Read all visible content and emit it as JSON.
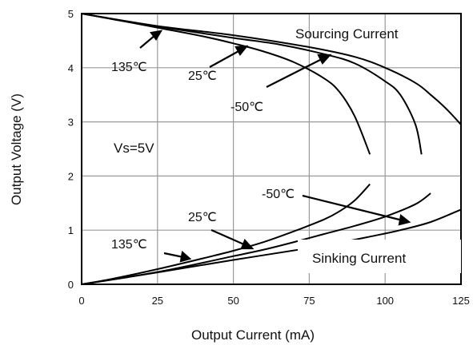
{
  "chart_data": {
    "type": "line",
    "xlabel": "Output Current (mA)",
    "ylabel": "Output Voltage (V)",
    "xlim": [
      0,
      125
    ],
    "ylim": [
      0,
      5
    ],
    "x_ticks": [
      0,
      25,
      50,
      75,
      100,
      125
    ],
    "y_ticks": [
      0,
      1,
      2,
      3,
      4,
      5
    ],
    "grid": true,
    "groups": {
      "sourcing": "Sourcing Current",
      "sinking": "Sinking Current"
    },
    "annotation": "Vs=5V",
    "series": [
      {
        "name": "135℃",
        "group": "sourcing",
        "x": [
          0,
          10,
          25,
          40,
          50,
          60,
          70,
          80,
          85,
          90,
          95
        ],
        "y": [
          5.0,
          4.9,
          4.74,
          4.58,
          4.45,
          4.3,
          4.1,
          3.8,
          3.55,
          3.1,
          2.4
        ]
      },
      {
        "name": "25℃",
        "group": "sourcing",
        "x": [
          0,
          15,
          30,
          50,
          65,
          80,
          90,
          100,
          105,
          110,
          112
        ],
        "y": [
          5.0,
          4.85,
          4.72,
          4.55,
          4.43,
          4.25,
          4.08,
          3.75,
          3.5,
          2.95,
          2.4
        ]
      },
      {
        "name": "-50℃",
        "group": "sourcing",
        "x": [
          0,
          25,
          50,
          75,
          90,
          100,
          110,
          115,
          120,
          125
        ],
        "y": [
          5.0,
          4.77,
          4.6,
          4.38,
          4.2,
          4.0,
          3.72,
          3.5,
          3.25,
          2.95
        ]
      },
      {
        "name": "135℃",
        "group": "sinking",
        "x": [
          0,
          10,
          25,
          40,
          50,
          60,
          70,
          80,
          85,
          90,
          95
        ],
        "y": [
          0,
          0.1,
          0.28,
          0.48,
          0.62,
          0.78,
          0.98,
          1.2,
          1.35,
          1.55,
          1.85
        ]
      },
      {
        "name": "25℃",
        "group": "sinking",
        "x": [
          0,
          15,
          30,
          50,
          60,
          70,
          80,
          90,
          100,
          110,
          115
        ],
        "y": [
          0,
          0.13,
          0.28,
          0.52,
          0.64,
          0.78,
          0.93,
          1.08,
          1.25,
          1.48,
          1.68
        ]
      },
      {
        "name": "-50℃",
        "group": "sinking",
        "x": [
          0,
          25,
          50,
          75,
          85,
          95,
          105,
          115,
          125
        ],
        "y": [
          0,
          0.22,
          0.45,
          0.67,
          0.77,
          0.88,
          1.0,
          1.15,
          1.38
        ]
      }
    ],
    "labels": [
      "135℃",
      "25℃",
      "-50℃",
      "25℃",
      "-50℃",
      "135℃"
    ]
  }
}
